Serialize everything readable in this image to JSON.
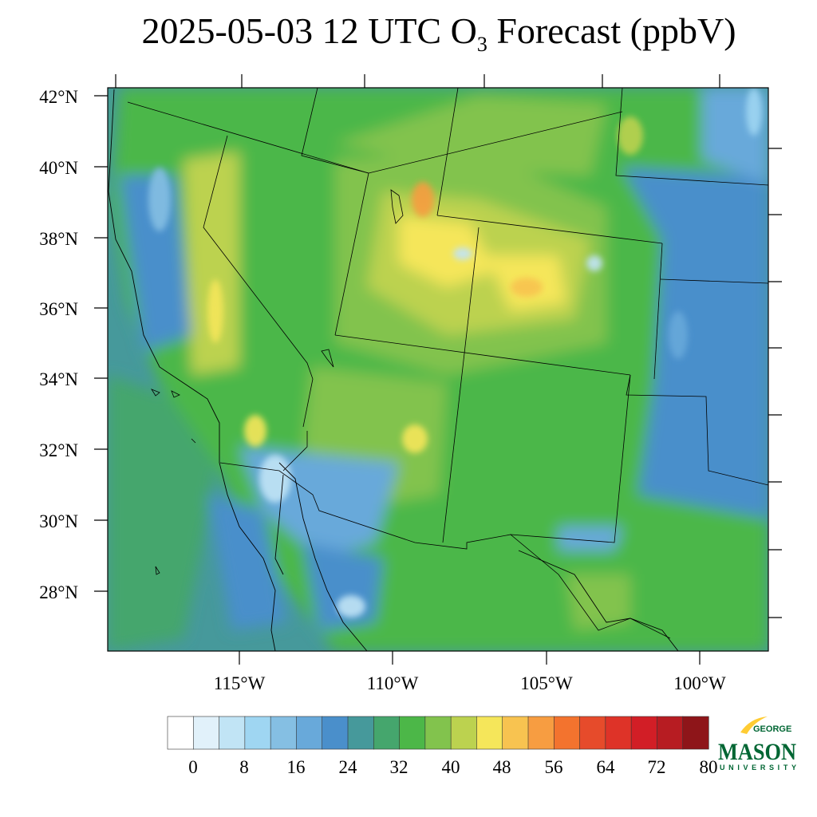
{
  "title": {
    "prefix": "2025-05-03 12 UTC O",
    "subscript": "3",
    "suffix": " Forecast (ppbV)"
  },
  "map": {
    "lat_labels": [
      "42°N",
      "40°N",
      "38°N",
      "36°N",
      "34°N",
      "32°N",
      "30°N",
      "28°N"
    ],
    "lon_labels": [
      "115°W",
      "110°W",
      "105°W",
      "100°W"
    ]
  },
  "colorbar": {
    "tick_labels": [
      "0",
      "8",
      "16",
      "24",
      "32",
      "40",
      "48",
      "56",
      "64",
      "72",
      "80"
    ],
    "colors": [
      "#ffffff",
      "#e1f1fa",
      "#c1e4f5",
      "#9fd6f2",
      "#85bfe3",
      "#68a9da",
      "#4a8fcb",
      "#46999b",
      "#45a66d",
      "#4cb748",
      "#82c34d",
      "#bcd24f",
      "#f5e65a",
      "#f8c350",
      "#f79d41",
      "#f3732e",
      "#e64b2b",
      "#de3328",
      "#d21e26",
      "#b71c22",
      "#8e1519"
    ]
  },
  "logo": {
    "george": "GEORGE",
    "mason": "MASON",
    "university": "UNIVERSITY",
    "green": "#006633",
    "gold": "#ffcc33"
  }
}
